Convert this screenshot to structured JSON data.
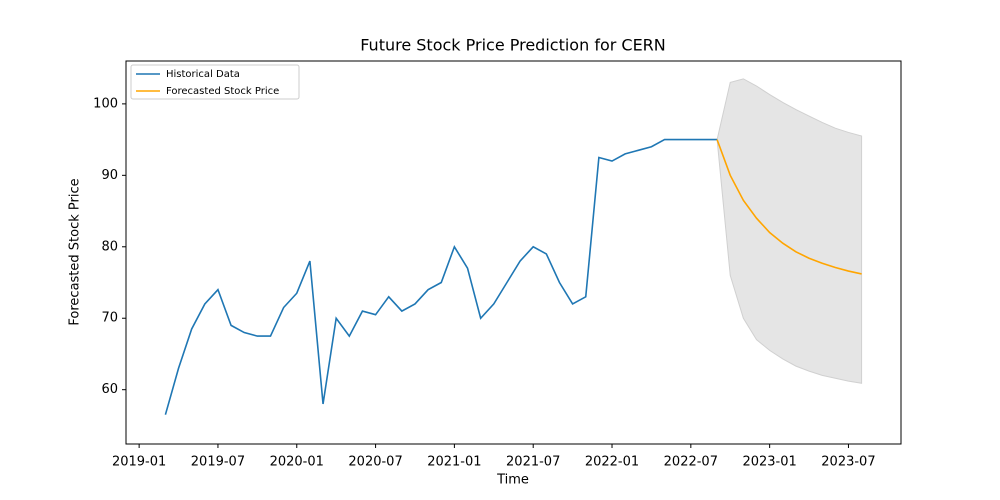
{
  "chart_data": {
    "type": "line",
    "title": "Future Stock Price Prediction for CERN",
    "xlabel": "Time",
    "ylabel": "Forecasted Stock Price",
    "xlim": [
      "2018-12",
      "2023-11"
    ],
    "ylim": [
      52.4,
      106
    ],
    "xticks": [
      "2019-01",
      "2019-07",
      "2020-01",
      "2020-07",
      "2021-01",
      "2021-07",
      "2022-01",
      "2022-07",
      "2023-01",
      "2023-07"
    ],
    "yticks": [
      60,
      70,
      80,
      90,
      100
    ],
    "legend": "upper left",
    "grid": false,
    "series": [
      {
        "name": "Historical Data",
        "color": "#1f77b4",
        "x": [
          "2019-03",
          "2019-04",
          "2019-05",
          "2019-06",
          "2019-07",
          "2019-08",
          "2019-09",
          "2019-10",
          "2019-11",
          "2019-12",
          "2020-01",
          "2020-02",
          "2020-03",
          "2020-04",
          "2020-05",
          "2020-06",
          "2020-07",
          "2020-08",
          "2020-09",
          "2020-10",
          "2020-11",
          "2020-12",
          "2021-01",
          "2021-02",
          "2021-03",
          "2021-04",
          "2021-05",
          "2021-06",
          "2021-07",
          "2021-08",
          "2021-09",
          "2021-10",
          "2021-11",
          "2021-12",
          "2022-01",
          "2022-02",
          "2022-03",
          "2022-04",
          "2022-05",
          "2022-06",
          "2022-07",
          "2022-08",
          "2022-09"
        ],
        "values": [
          56.5,
          63,
          68.5,
          72,
          74,
          69,
          68,
          67.5,
          67.5,
          71.5,
          73.5,
          78,
          58,
          70,
          67.5,
          71,
          70.5,
          73,
          71,
          72,
          74,
          75,
          80,
          77,
          70,
          72,
          75,
          78,
          80,
          79,
          75,
          72,
          73,
          92.5,
          92,
          93,
          93.5,
          94,
          95,
          95,
          95,
          95,
          95
        ]
      },
      {
        "name": "Forecasted Stock Price",
        "color": "#ffa500",
        "x": [
          "2022-09",
          "2022-10",
          "2022-11",
          "2022-12",
          "2023-01",
          "2023-02",
          "2023-03",
          "2023-04",
          "2023-05",
          "2023-06",
          "2023-07",
          "2023-08"
        ],
        "values": [
          95,
          90,
          86.5,
          84,
          82,
          80.5,
          79.3,
          78.4,
          77.7,
          77.1,
          76.6,
          76.2
        ]
      }
    ],
    "band": {
      "color": "#e5e5e5",
      "x": [
        "2022-09",
        "2022-10",
        "2022-11",
        "2022-12",
        "2023-01",
        "2023-02",
        "2023-03",
        "2023-04",
        "2023-05",
        "2023-06",
        "2023-07",
        "2023-08"
      ],
      "upper": [
        95,
        103,
        103.5,
        102.5,
        101.3,
        100.2,
        99.2,
        98.3,
        97.4,
        96.6,
        96,
        95.5
      ],
      "lower": [
        95,
        76,
        70,
        67,
        65.5,
        64.3,
        63.3,
        62.6,
        62,
        61.6,
        61.2,
        60.9
      ]
    }
  }
}
